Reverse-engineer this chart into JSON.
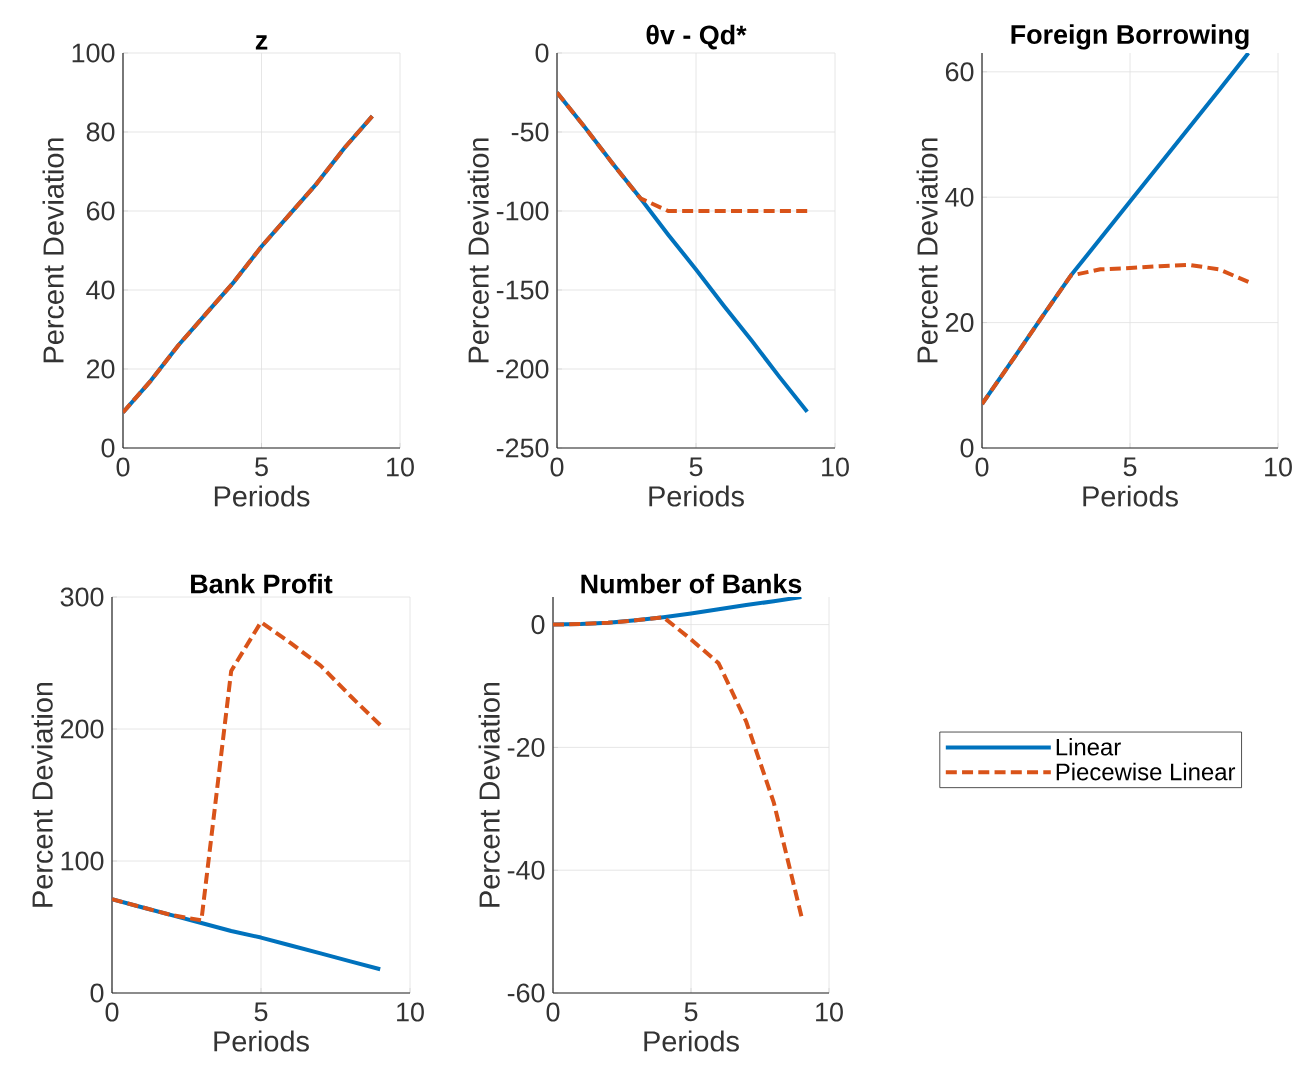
{
  "chart_data": [
    {
      "type": "line",
      "title": "z",
      "xlabel": "Periods",
      "ylabel": "Percent Deviation",
      "x": [
        0,
        1,
        2,
        3,
        4,
        5,
        6,
        7,
        8,
        9
      ],
      "xlim": [
        0,
        10
      ],
      "xticks": [
        0,
        5,
        10
      ],
      "ylim": [
        0,
        100
      ],
      "yticks": [
        0,
        20,
        40,
        60,
        80,
        100
      ],
      "grid": true,
      "series": [
        {
          "color": "#0072bd",
          "line_style": "solid",
          "values": [
            9,
            17,
            26,
            34,
            42,
            51,
            59,
            67,
            76,
            84
          ]
        },
        {
          "color": "#d95319",
          "line_style": "dashed",
          "values": [
            9,
            17,
            26,
            34,
            42,
            51,
            59,
            67,
            76,
            84
          ]
        }
      ]
    },
    {
      "type": "line",
      "title": "θv - Qd*",
      "xlabel": "Periods",
      "ylabel": "Percent Deviation",
      "x": [
        0,
        1,
        2,
        3,
        4,
        5,
        6,
        7,
        8,
        9
      ],
      "xlim": [
        0,
        10
      ],
      "xticks": [
        0,
        5,
        10
      ],
      "ylim": [
        -250,
        0
      ],
      "yticks": [
        -250,
        -200,
        -150,
        -100,
        -50,
        0
      ],
      "grid": true,
      "series": [
        {
          "color": "#0072bd",
          "line_style": "solid",
          "values": [
            -25,
            -47,
            -70,
            -92,
            -115,
            -137,
            -160,
            -182,
            -205,
            -227
          ]
        },
        {
          "color": "#d95319",
          "line_style": "dashed",
          "values": [
            -25,
            -47,
            -70,
            -92,
            -100,
            -100,
            -100,
            -100,
            -100,
            -100
          ]
        }
      ]
    },
    {
      "type": "line",
      "title": "Foreign Borrowing",
      "xlabel": "Periods",
      "ylabel": "Percent Deviation",
      "x": [
        0,
        1,
        2,
        3,
        4,
        5,
        6,
        7,
        8,
        9
      ],
      "xlim": [
        0,
        10
      ],
      "xticks": [
        0,
        5,
        10
      ],
      "ylim": [
        0,
        63
      ],
      "yticks": [
        0,
        20,
        40,
        60
      ],
      "grid": true,
      "series": [
        {
          "color": "#0072bd",
          "line_style": "solid",
          "values": [
            7,
            13.8,
            20.7,
            27.5,
            33.4,
            39.3,
            45.2,
            51.1,
            57,
            63
          ]
        },
        {
          "color": "#d95319",
          "line_style": "dashed",
          "values": [
            7,
            13.8,
            20.7,
            27.5,
            28.5,
            28.7,
            29,
            29.2,
            28.5,
            26.5
          ]
        }
      ]
    },
    {
      "type": "line",
      "title": "Bank Profit",
      "xlabel": "Periods",
      "ylabel": "Percent Deviation",
      "x": [
        0,
        1,
        2,
        3,
        4,
        5,
        6,
        7,
        8,
        9
      ],
      "xlim": [
        0,
        10
      ],
      "xticks": [
        0,
        5,
        10
      ],
      "ylim": [
        0,
        300
      ],
      "yticks": [
        0,
        100,
        200,
        300
      ],
      "grid": true,
      "series": [
        {
          "color": "#0072bd",
          "line_style": "solid",
          "values": [
            71,
            65,
            59,
            53,
            47,
            42,
            36,
            30,
            24,
            18
          ]
        },
        {
          "color": "#d95319",
          "line_style": "dashed",
          "values": [
            71,
            65,
            59,
            55,
            244,
            281,
            265,
            248,
            225,
            203
          ]
        }
      ]
    },
    {
      "type": "line",
      "title": "Number of Banks",
      "xlabel": "Periods",
      "ylabel": "Percent Deviation",
      "x": [
        0,
        1,
        2,
        3,
        4,
        5,
        6,
        7,
        8,
        9
      ],
      "xlim": [
        0,
        10
      ],
      "xticks": [
        0,
        5,
        10
      ],
      "ylim": [
        -60,
        4.5
      ],
      "yticks": [
        -60,
        -40,
        -20,
        0
      ],
      "grid": true,
      "legend": "right",
      "series": [
        {
          "name": "Linear",
          "color": "#0072bd",
          "line_style": "solid",
          "values": [
            0,
            0.1,
            0.3,
            0.7,
            1.2,
            1.8,
            2.5,
            3.2,
            3.8,
            4.5
          ]
        },
        {
          "name": "Piecewise Linear",
          "color": "#d95319",
          "line_style": "dashed",
          "values": [
            0,
            0.1,
            0.3,
            0.7,
            1.2,
            -2.4,
            -6.3,
            -15.8,
            -29,
            -47.5
          ]
        }
      ]
    }
  ]
}
